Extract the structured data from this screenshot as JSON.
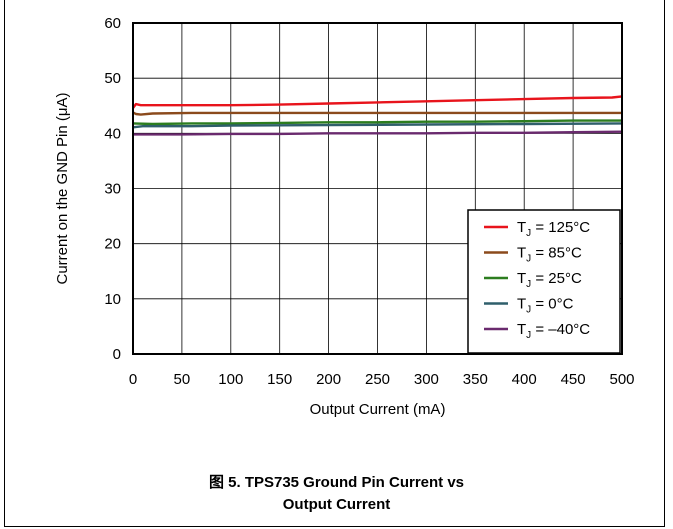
{
  "caption": {
    "line1": "图 5. TPS735 Ground Pin Current vs",
    "line2": "Output Current"
  },
  "chart_data": {
    "type": "line",
    "xlabel": "Output Current (mA)",
    "ylabel": "Current on the GND Pin (μA)",
    "xlim": [
      0,
      500
    ],
    "ylim": [
      0,
      60
    ],
    "xticks": [
      0,
      50,
      100,
      150,
      200,
      250,
      300,
      350,
      400,
      450,
      500
    ],
    "yticks": [
      0,
      10,
      20,
      30,
      40,
      50,
      60
    ],
    "grid": true,
    "legend_position": "lower-right",
    "series": [
      {
        "name_main": "T",
        "name_sub": "J",
        "name_rest": " = 125°C",
        "color": "#e8141c",
        "x": [
          0,
          3,
          8,
          20,
          60,
          100,
          150,
          200,
          250,
          300,
          350,
          400,
          450,
          490,
          500
        ],
        "y": [
          44.6,
          45.3,
          45.1,
          45.1,
          45.1,
          45.1,
          45.2,
          45.4,
          45.6,
          45.8,
          46.0,
          46.2,
          46.4,
          46.5,
          46.7
        ]
      },
      {
        "name_main": "T",
        "name_sub": "J",
        "name_rest": " = 85°C",
        "color": "#8b4a1c",
        "x": [
          0,
          3,
          8,
          20,
          60,
          100,
          200,
          300,
          400,
          500
        ],
        "y": [
          43.8,
          43.5,
          43.4,
          43.6,
          43.7,
          43.7,
          43.7,
          43.7,
          43.7,
          43.7
        ]
      },
      {
        "name_main": "T",
        "name_sub": "J",
        "name_rest": " = 25°C",
        "color": "#2c7d1f",
        "x": [
          0,
          20,
          60,
          100,
          150,
          200,
          250,
          300,
          350,
          400,
          450,
          500
        ],
        "y": [
          41.8,
          41.7,
          41.8,
          41.8,
          41.9,
          42.0,
          42.0,
          42.1,
          42.1,
          42.2,
          42.3,
          42.3
        ]
      },
      {
        "name_main": "T",
        "name_sub": "J",
        "name_rest": " = 0°C",
        "color": "#2f5f6b",
        "x": [
          0,
          10,
          30,
          60,
          100,
          200,
          300,
          400,
          500
        ],
        "y": [
          41.1,
          41.3,
          41.3,
          41.3,
          41.4,
          41.5,
          41.6,
          41.7,
          41.8
        ]
      },
      {
        "name_main": "T",
        "name_sub": "J",
        "name_rest": " = –40°C",
        "color": "#6a2a6e",
        "x": [
          0,
          50,
          100,
          150,
          200,
          250,
          300,
          350,
          400,
          450,
          500
        ],
        "y": [
          39.8,
          39.8,
          39.9,
          39.9,
          40.0,
          40.0,
          40.0,
          40.1,
          40.1,
          40.2,
          40.3
        ]
      }
    ]
  }
}
